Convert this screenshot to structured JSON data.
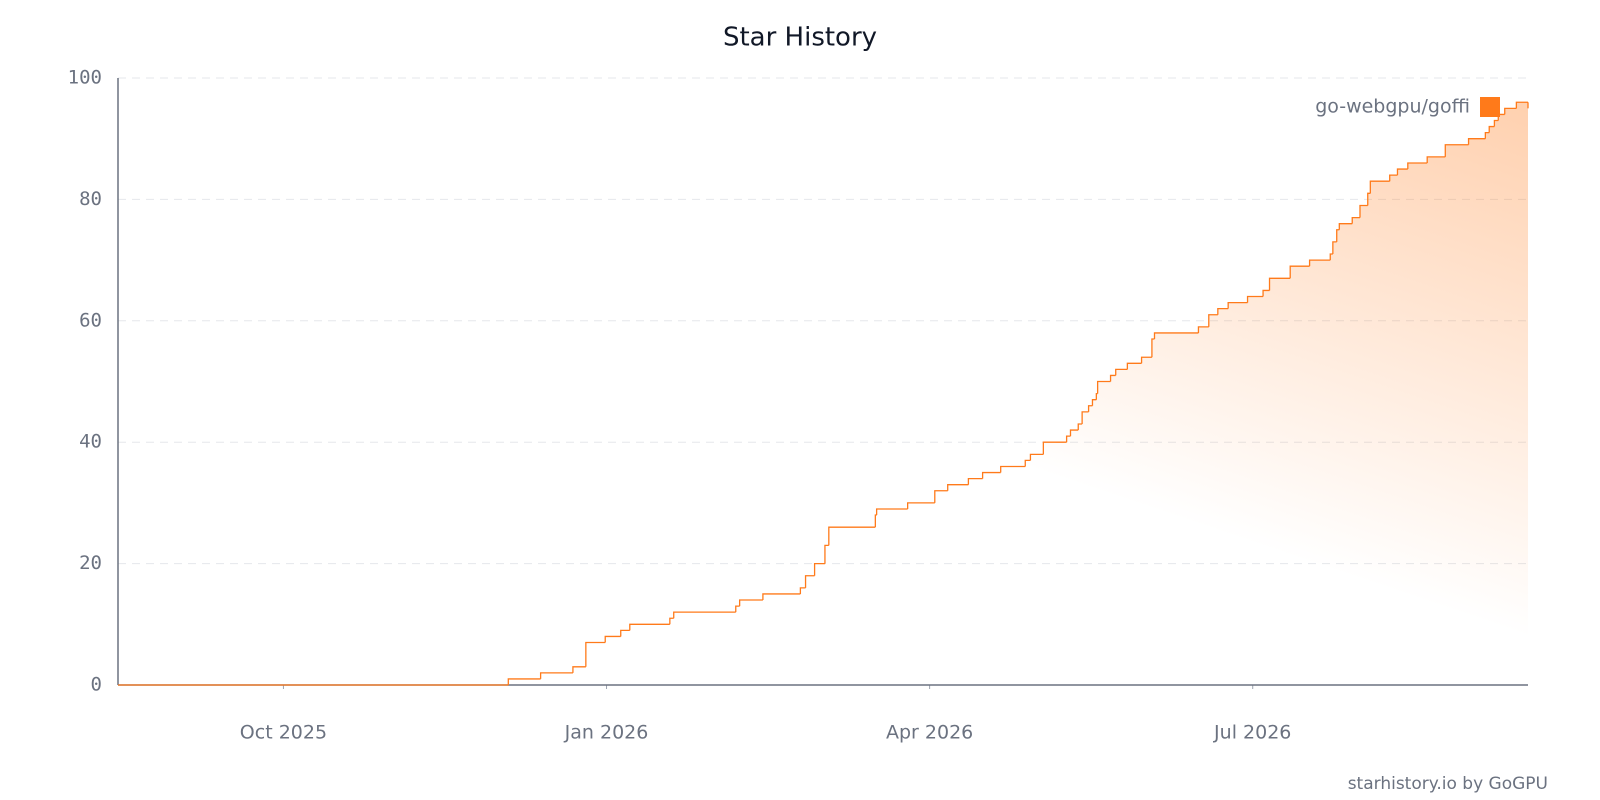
{
  "chart_data": {
    "type": "line",
    "title": "Star History",
    "x": [
      2025.622,
      2025.924,
      2025.949,
      2025.974,
      2025.984,
      2025.999,
      2026.011,
      2026.018,
      2026.049,
      2026.052,
      2026.1,
      2026.103,
      2026.121,
      2026.15,
      2026.154,
      2026.161,
      2026.169,
      2026.172,
      2026.208,
      2026.209,
      2026.233,
      2026.254,
      2026.264,
      2026.28,
      2026.291,
      2026.305,
      2026.324,
      2026.328,
      2026.338,
      2026.356,
      2026.359,
      2026.365,
      2026.368,
      2026.373,
      2026.376,
      2026.379,
      2026.38,
      2026.39,
      2026.394,
      2026.403,
      2026.414,
      2026.422,
      2026.424,
      2026.458,
      2026.466,
      2026.473,
      2026.481,
      2026.496,
      2026.508,
      2026.513,
      2026.529,
      2026.544,
      2026.56,
      2026.562,
      2026.565,
      2026.567,
      2026.577,
      2026.583,
      2026.589,
      2026.591,
      2026.606,
      2026.612,
      2026.62,
      2026.635,
      2026.649,
      2026.667,
      2026.68,
      2026.683,
      2026.687,
      2026.69,
      2026.695,
      2026.704,
      2026.713
    ],
    "series": [
      {
        "name": "go-webgpu/goffi",
        "color": "#ff7a1a",
        "values": [
          0,
          1,
          2,
          3,
          7,
          8,
          9,
          10,
          11,
          12,
          13,
          14,
          15,
          16,
          18,
          20,
          23,
          26,
          28,
          29,
          30,
          32,
          33,
          34,
          35,
          36,
          37,
          38,
          40,
          41,
          42,
          43,
          45,
          46,
          47,
          48,
          50,
          51,
          52,
          53,
          54,
          57,
          58,
          59,
          61,
          62,
          63,
          64,
          65,
          67,
          69,
          70,
          71,
          73,
          75,
          76,
          77,
          79,
          81,
          83,
          84,
          85,
          86,
          87,
          89,
          90,
          91,
          92,
          93,
          94,
          95,
          96,
          95
        ]
      }
    ],
    "xlim": [
      2025.622,
      2026.713
    ],
    "xticks": [
      {
        "value": 2025.75,
        "label": "Oct 2025"
      },
      {
        "value": 2026.0,
        "label": "Jan 2026"
      },
      {
        "value": 2026.25,
        "label": "Apr 2026"
      },
      {
        "value": 2026.5,
        "label": "Jul 2026"
      }
    ],
    "ylim": [
      0,
      100
    ],
    "yticks": [
      0,
      20,
      40,
      60,
      80,
      100
    ],
    "grid": true,
    "legend": "upper right",
    "watermark": "starhistory.io by GoGPU"
  }
}
